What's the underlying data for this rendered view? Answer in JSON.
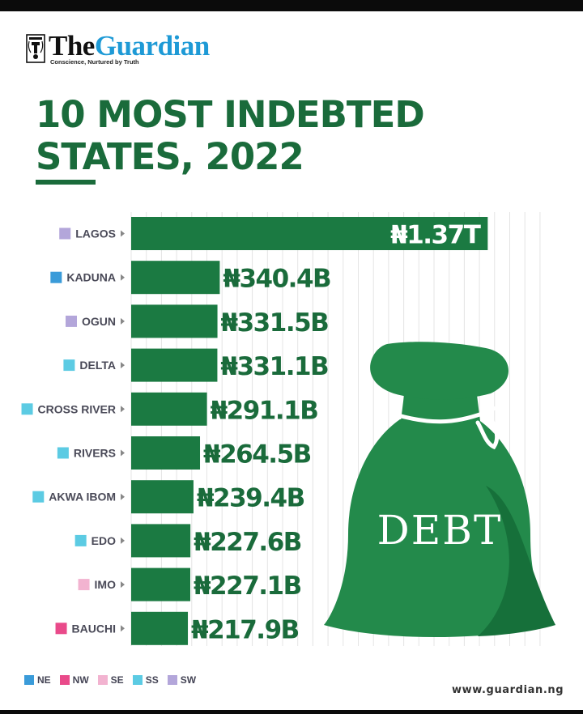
{
  "brand": {
    "name_part1": "The",
    "name_part2": "Guardian",
    "tagline": "Conscience, Nurtured by Truth",
    "website": "www.guardian.ng",
    "emblem_icon": "guardian-emblem-icon"
  },
  "title": {
    "line1": "10 MOST INDEBTED",
    "line2": "STATES, 2022"
  },
  "colors": {
    "bar": "#1b7a42",
    "title": "#1a6b3b",
    "bag": "#238a4b",
    "bag_dark": "#16703a",
    "NE": "#3a9bd9",
    "NW": "#e94a8a",
    "SE": "#f2b3d0",
    "SS": "#5ccbe3",
    "SW": "#b3a6da"
  },
  "chart_data": {
    "type": "bar",
    "orientation": "horizontal",
    "unit": "Naira",
    "categories": [
      "LAGOS",
      "KADUNA",
      "OGUN",
      "DELTA",
      "CROSS RIVER",
      "RIVERS",
      "AKWA IBOM",
      "EDO",
      "IMO",
      "BAUCHI"
    ],
    "values": [
      1370,
      340.4,
      331.5,
      331.1,
      291.1,
      264.5,
      239.4,
      227.6,
      227.1,
      217.9
    ],
    "value_unit": "billion naira",
    "data_labels": [
      "₦1.37T",
      "₦340.4B",
      "₦331.5B",
      "₦331.1B",
      "₦291.1B",
      "₦264.5B",
      "₦239.4B",
      "₦227.6B",
      "₦227.1B",
      "₦217.9B"
    ],
    "regions": [
      "SW",
      "NE",
      "SW",
      "SS",
      "SS",
      "SS",
      "SS",
      "SS",
      "SE",
      "NW"
    ],
    "xlim": [
      0,
      1400
    ],
    "grid": true,
    "legend": [
      {
        "code": "NE",
        "label": "NE"
      },
      {
        "code": "NW",
        "label": "NW"
      },
      {
        "code": "SE",
        "label": "SE"
      },
      {
        "code": "SS",
        "label": "SS"
      },
      {
        "code": "SW",
        "label": "SW"
      }
    ]
  },
  "illustration": {
    "label": "DEBT",
    "icon": "money-bag-icon"
  }
}
